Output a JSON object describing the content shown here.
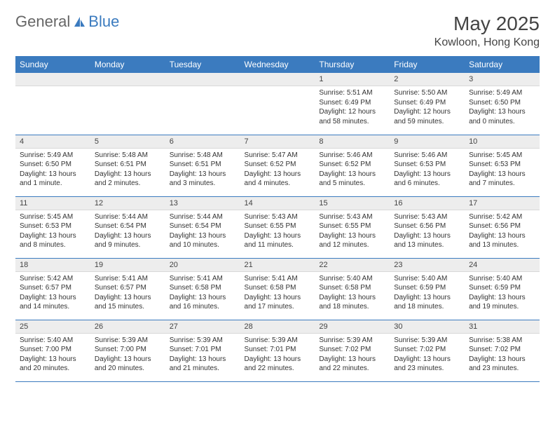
{
  "logo": {
    "text_left": "General",
    "text_right": "Blue",
    "icon_color": "#3b7bbf"
  },
  "header": {
    "month_title": "May 2025",
    "location": "Kowloon, Hong Kong"
  },
  "colors": {
    "header_bg": "#3b7bbf",
    "header_text": "#ffffff",
    "daynum_bg": "#ededed",
    "row_border": "#3b7bbf",
    "body_text": "#333333",
    "page_bg": "#ffffff"
  },
  "typography": {
    "month_title_size": 28,
    "location_size": 16,
    "th_size": 12,
    "daynum_size": 11,
    "body_size": 10
  },
  "day_headers": [
    "Sunday",
    "Monday",
    "Tuesday",
    "Wednesday",
    "Thursday",
    "Friday",
    "Saturday"
  ],
  "weeks": [
    [
      {
        "empty": true
      },
      {
        "empty": true
      },
      {
        "empty": true
      },
      {
        "empty": true
      },
      {
        "num": "1",
        "sunrise": "Sunrise: 5:51 AM",
        "sunset": "Sunset: 6:49 PM",
        "daylight": "Daylight: 12 hours and 58 minutes."
      },
      {
        "num": "2",
        "sunrise": "Sunrise: 5:50 AM",
        "sunset": "Sunset: 6:49 PM",
        "daylight": "Daylight: 12 hours and 59 minutes."
      },
      {
        "num": "3",
        "sunrise": "Sunrise: 5:49 AM",
        "sunset": "Sunset: 6:50 PM",
        "daylight": "Daylight: 13 hours and 0 minutes."
      }
    ],
    [
      {
        "num": "4",
        "sunrise": "Sunrise: 5:49 AM",
        "sunset": "Sunset: 6:50 PM",
        "daylight": "Daylight: 13 hours and 1 minute."
      },
      {
        "num": "5",
        "sunrise": "Sunrise: 5:48 AM",
        "sunset": "Sunset: 6:51 PM",
        "daylight": "Daylight: 13 hours and 2 minutes."
      },
      {
        "num": "6",
        "sunrise": "Sunrise: 5:48 AM",
        "sunset": "Sunset: 6:51 PM",
        "daylight": "Daylight: 13 hours and 3 minutes."
      },
      {
        "num": "7",
        "sunrise": "Sunrise: 5:47 AM",
        "sunset": "Sunset: 6:52 PM",
        "daylight": "Daylight: 13 hours and 4 minutes."
      },
      {
        "num": "8",
        "sunrise": "Sunrise: 5:46 AM",
        "sunset": "Sunset: 6:52 PM",
        "daylight": "Daylight: 13 hours and 5 minutes."
      },
      {
        "num": "9",
        "sunrise": "Sunrise: 5:46 AM",
        "sunset": "Sunset: 6:53 PM",
        "daylight": "Daylight: 13 hours and 6 minutes."
      },
      {
        "num": "10",
        "sunrise": "Sunrise: 5:45 AM",
        "sunset": "Sunset: 6:53 PM",
        "daylight": "Daylight: 13 hours and 7 minutes."
      }
    ],
    [
      {
        "num": "11",
        "sunrise": "Sunrise: 5:45 AM",
        "sunset": "Sunset: 6:53 PM",
        "daylight": "Daylight: 13 hours and 8 minutes."
      },
      {
        "num": "12",
        "sunrise": "Sunrise: 5:44 AM",
        "sunset": "Sunset: 6:54 PM",
        "daylight": "Daylight: 13 hours and 9 minutes."
      },
      {
        "num": "13",
        "sunrise": "Sunrise: 5:44 AM",
        "sunset": "Sunset: 6:54 PM",
        "daylight": "Daylight: 13 hours and 10 minutes."
      },
      {
        "num": "14",
        "sunrise": "Sunrise: 5:43 AM",
        "sunset": "Sunset: 6:55 PM",
        "daylight": "Daylight: 13 hours and 11 minutes."
      },
      {
        "num": "15",
        "sunrise": "Sunrise: 5:43 AM",
        "sunset": "Sunset: 6:55 PM",
        "daylight": "Daylight: 13 hours and 12 minutes."
      },
      {
        "num": "16",
        "sunrise": "Sunrise: 5:43 AM",
        "sunset": "Sunset: 6:56 PM",
        "daylight": "Daylight: 13 hours and 13 minutes."
      },
      {
        "num": "17",
        "sunrise": "Sunrise: 5:42 AM",
        "sunset": "Sunset: 6:56 PM",
        "daylight": "Daylight: 13 hours and 13 minutes."
      }
    ],
    [
      {
        "num": "18",
        "sunrise": "Sunrise: 5:42 AM",
        "sunset": "Sunset: 6:57 PM",
        "daylight": "Daylight: 13 hours and 14 minutes."
      },
      {
        "num": "19",
        "sunrise": "Sunrise: 5:41 AM",
        "sunset": "Sunset: 6:57 PM",
        "daylight": "Daylight: 13 hours and 15 minutes."
      },
      {
        "num": "20",
        "sunrise": "Sunrise: 5:41 AM",
        "sunset": "Sunset: 6:58 PM",
        "daylight": "Daylight: 13 hours and 16 minutes."
      },
      {
        "num": "21",
        "sunrise": "Sunrise: 5:41 AM",
        "sunset": "Sunset: 6:58 PM",
        "daylight": "Daylight: 13 hours and 17 minutes."
      },
      {
        "num": "22",
        "sunrise": "Sunrise: 5:40 AM",
        "sunset": "Sunset: 6:58 PM",
        "daylight": "Daylight: 13 hours and 18 minutes."
      },
      {
        "num": "23",
        "sunrise": "Sunrise: 5:40 AM",
        "sunset": "Sunset: 6:59 PM",
        "daylight": "Daylight: 13 hours and 18 minutes."
      },
      {
        "num": "24",
        "sunrise": "Sunrise: 5:40 AM",
        "sunset": "Sunset: 6:59 PM",
        "daylight": "Daylight: 13 hours and 19 minutes."
      }
    ],
    [
      {
        "num": "25",
        "sunrise": "Sunrise: 5:40 AM",
        "sunset": "Sunset: 7:00 PM",
        "daylight": "Daylight: 13 hours and 20 minutes."
      },
      {
        "num": "26",
        "sunrise": "Sunrise: 5:39 AM",
        "sunset": "Sunset: 7:00 PM",
        "daylight": "Daylight: 13 hours and 20 minutes."
      },
      {
        "num": "27",
        "sunrise": "Sunrise: 5:39 AM",
        "sunset": "Sunset: 7:01 PM",
        "daylight": "Daylight: 13 hours and 21 minutes."
      },
      {
        "num": "28",
        "sunrise": "Sunrise: 5:39 AM",
        "sunset": "Sunset: 7:01 PM",
        "daylight": "Daylight: 13 hours and 22 minutes."
      },
      {
        "num": "29",
        "sunrise": "Sunrise: 5:39 AM",
        "sunset": "Sunset: 7:02 PM",
        "daylight": "Daylight: 13 hours and 22 minutes."
      },
      {
        "num": "30",
        "sunrise": "Sunrise: 5:39 AM",
        "sunset": "Sunset: 7:02 PM",
        "daylight": "Daylight: 13 hours and 23 minutes."
      },
      {
        "num": "31",
        "sunrise": "Sunrise: 5:38 AM",
        "sunset": "Sunset: 7:02 PM",
        "daylight": "Daylight: 13 hours and 23 minutes."
      }
    ]
  ]
}
